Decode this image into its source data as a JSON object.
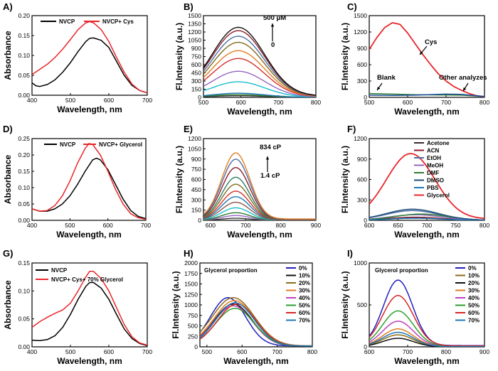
{
  "chart_data": [
    {
      "id": "A",
      "panel_label": "A)",
      "type": "line",
      "xlabel": "Wavelength, nm",
      "ylabel": "Absorbance",
      "xlim": [
        400,
        700
      ],
      "ylim": [
        0,
        0.2
      ],
      "xticks": [
        400,
        500,
        600,
        700
      ],
      "yticks": [
        0.0,
        0.05,
        0.1,
        0.15,
        0.2
      ],
      "yticklabels": [
        "0.00",
        "0.05",
        "0.10",
        "0.15",
        "0.20"
      ],
      "legend": "top-left",
      "series": [
        {
          "name": "NVCP",
          "color": "#000000",
          "x": [
            400,
            410,
            420,
            440,
            460,
            480,
            500,
            520,
            540,
            550,
            560,
            580,
            600,
            620,
            640,
            660,
            680,
            700
          ],
          "y": [
            0.031,
            0.024,
            0.022,
            0.027,
            0.039,
            0.058,
            0.082,
            0.11,
            0.135,
            0.143,
            0.144,
            0.138,
            0.12,
            0.085,
            0.05,
            0.025,
            0.012,
            0.006
          ]
        },
        {
          "name": "NVCP+ Cys",
          "color": "#e8262a",
          "x": [
            400,
            420,
            440,
            460,
            480,
            500,
            520,
            540,
            550,
            560,
            580,
            600,
            620,
            640,
            660,
            680,
            700
          ],
          "y": [
            0.052,
            0.065,
            0.078,
            0.095,
            0.116,
            0.14,
            0.165,
            0.182,
            0.185,
            0.182,
            0.165,
            0.135,
            0.095,
            0.058,
            0.028,
            0.012,
            0.006
          ]
        }
      ]
    },
    {
      "id": "B",
      "panel_label": "B)",
      "type": "line",
      "xlabel": "Wavelength, nm",
      "ylabel": "Fl.Intensity (a.u.)",
      "xlim": [
        500,
        800
      ],
      "ylim": [
        0,
        1500
      ],
      "xticks": [
        500,
        600,
        700,
        800
      ],
      "yticks": [
        0,
        150,
        300,
        450,
        600,
        750,
        900,
        1050,
        1200,
        1350,
        1500
      ],
      "yticklabels": [
        "0",
        "150",
        "300",
        "450",
        "600",
        "750",
        "900",
        "1050",
        "1200",
        "1350",
        "1500"
      ],
      "annotations": [
        "500 μM",
        "0"
      ],
      "peak_x": 593,
      "width": 70,
      "peaks": [
        30,
        50,
        75,
        280,
        470,
        700,
        840,
        990,
        1100,
        1200,
        1260
      ],
      "colors": [
        "#3a3a3a",
        "#2e7d32",
        "#1f77b4",
        "#17becf",
        "#9467bd",
        "#d0312d",
        "#e37d24",
        "#7f6a1a",
        "#4c6fa5",
        "#8c1d2a",
        "#111111"
      ]
    },
    {
      "id": "C",
      "panel_label": "C)",
      "type": "line",
      "xlabel": "Wavelength, nm",
      "ylabel": "Fl.Intensity (a.u.)",
      "xlim": [
        500,
        800
      ],
      "ylim": [
        0,
        1500
      ],
      "xticks": [
        500,
        600,
        700,
        800
      ],
      "yticks": [
        0,
        300,
        600,
        900,
        1200,
        1500
      ],
      "yticklabels": [
        "0",
        "300",
        "600",
        "900",
        "1200",
        "1500"
      ],
      "annotations": [
        "Cys",
        "Blank",
        "Other analyzes"
      ],
      "series": [
        {
          "name": "Cys",
          "color": "#e8262a",
          "x": [
            500,
            520,
            540,
            560,
            580,
            600,
            620,
            640,
            660,
            680,
            700,
            720,
            740,
            760,
            780,
            800
          ],
          "y": [
            880,
            1100,
            1280,
            1370,
            1340,
            1180,
            980,
            780,
            600,
            430,
            300,
            200,
            130,
            70,
            30,
            10
          ]
        },
        {
          "name": "Blank",
          "color": "#2e7d32",
          "x": [
            500,
            560,
            620,
            680,
            700,
            740,
            780,
            800
          ],
          "y": [
            70,
            60,
            50,
            45,
            45,
            40,
            25,
            15
          ]
        },
        {
          "name": "Other analyzes",
          "color": "#1f4e9e",
          "x": [
            500,
            560,
            620,
            680,
            700,
            740,
            780,
            800
          ],
          "y": [
            40,
            35,
            40,
            55,
            60,
            55,
            30,
            15
          ]
        }
      ]
    },
    {
      "id": "D",
      "panel_label": "D)",
      "type": "line",
      "xlabel": "Wavelength, nm",
      "ylabel": "Absorbance",
      "xlim": [
        400,
        700
      ],
      "ylim": [
        0,
        0.25
      ],
      "xticks": [
        400,
        500,
        600,
        700
      ],
      "yticks": [
        0.0,
        0.05,
        0.1,
        0.15,
        0.2,
        0.25
      ],
      "yticklabels": [
        "0.00",
        "0.05",
        "0.10",
        "0.15",
        "0.20",
        "0.25"
      ],
      "legend": "top",
      "series": [
        {
          "name": "NVCP",
          "color": "#000000",
          "x": [
            400,
            420,
            440,
            460,
            480,
            500,
            520,
            540,
            560,
            570,
            580,
            600,
            620,
            640,
            660,
            680,
            700
          ],
          "y": [
            0.035,
            0.028,
            0.028,
            0.035,
            0.05,
            0.075,
            0.11,
            0.15,
            0.185,
            0.19,
            0.185,
            0.155,
            0.11,
            0.065,
            0.03,
            0.012,
            0.005
          ]
        },
        {
          "name": "NVCP+ Glycerol",
          "color": "#e8262a",
          "x": [
            400,
            420,
            440,
            460,
            480,
            500,
            520,
            540,
            550,
            560,
            580,
            600,
            620,
            640,
            660,
            680,
            700
          ],
          "y": [
            0.035,
            0.028,
            0.03,
            0.045,
            0.075,
            0.12,
            0.175,
            0.22,
            0.235,
            0.232,
            0.2,
            0.15,
            0.095,
            0.05,
            0.02,
            0.008,
            0.003
          ]
        }
      ]
    },
    {
      "id": "E",
      "panel_label": "E)",
      "type": "line",
      "xlabel": "Wavelength, nm",
      "ylabel": "Fl.Intensity (a.u.)",
      "xlim": [
        580,
        900
      ],
      "ylim": [
        0,
        1200
      ],
      "xticks": [
        600,
        700,
        800,
        900
      ],
      "yticks": [
        0,
        150,
        300,
        450,
        600,
        750,
        900,
        1050,
        1200
      ],
      "yticklabels": [
        "0",
        "150",
        "300",
        "450",
        "600",
        "750",
        "900",
        "1050",
        "1200"
      ],
      "annotations": [
        "834 cP",
        "1.4 cP"
      ],
      "peak_x": 672,
      "width": 40,
      "peaks": [
        30,
        70,
        110,
        180,
        260,
        340,
        420,
        520,
        620,
        760,
        880,
        970
      ],
      "colors": [
        "#3a3a3a",
        "#9467bd",
        "#2e7d32",
        "#17becf",
        "#8c564b",
        "#1f77b4",
        "#d0312d",
        "#7f6a1a",
        "#2a7f62",
        "#8c1d2a",
        "#4c6fa5",
        "#e37d24"
      ]
    },
    {
      "id": "F",
      "panel_label": "F)",
      "type": "line",
      "xlabel": "Wavelength, nm",
      "ylabel": "Fl.Intensity (a.u.)",
      "xlim": [
        600,
        800
      ],
      "ylim": [
        0,
        1200
      ],
      "xticks": [
        600,
        650,
        700,
        750,
        800
      ],
      "yticks": [
        0,
        300,
        600,
        900,
        1200
      ],
      "yticklabels": [
        "0",
        "300",
        "600",
        "900",
        "1200"
      ],
      "legend": "top-right",
      "series": [
        {
          "name": "Acetone",
          "color": "#3a2a2a",
          "peak_x": 680,
          "peak": 40,
          "width": 45
        },
        {
          "name": "ACN",
          "color": "#8c1d2a",
          "peak_x": 680,
          "peak": 45,
          "width": 45
        },
        {
          "name": "EtOH",
          "color": "#4c6fa5",
          "peak_x": 675,
          "peak": 140,
          "width": 45
        },
        {
          "name": "MeOH",
          "color": "#9467bd",
          "peak_x": 680,
          "peak": 80,
          "width": 45
        },
        {
          "name": "DMF",
          "color": "#2e7d32",
          "peak_x": 690,
          "peak": 90,
          "width": 45
        },
        {
          "name": "DMSO",
          "color": "#1f4e79",
          "peak_x": 675,
          "peak": 160,
          "width": 45
        },
        {
          "name": "PBS",
          "color": "#1f77b4",
          "peak_x": 680,
          "peak": 30,
          "width": 45
        },
        {
          "name": "Glycerol",
          "color": "#e8262a",
          "peak_x": 672,
          "peak": 960,
          "width": 42
        }
      ]
    },
    {
      "id": "G",
      "panel_label": "G)",
      "type": "line",
      "xlabel": "Wavelength, nm",
      "ylabel": "Absorbance",
      "xlim": [
        400,
        700
      ],
      "ylim": [
        0,
        0.15
      ],
      "xticks": [
        400,
        500,
        600,
        700
      ],
      "yticks": [
        0.0,
        0.05,
        0.1,
        0.15
      ],
      "yticklabels": [
        "0.00",
        "0.05",
        "0.10",
        "0.15"
      ],
      "legend": "top-left",
      "series": [
        {
          "name": "NVCP",
          "color": "#000000",
          "x": [
            400,
            420,
            440,
            460,
            480,
            500,
            520,
            540,
            550,
            560,
            580,
            600,
            620,
            640,
            660,
            680,
            700
          ],
          "y": [
            0.012,
            0.011,
            0.013,
            0.02,
            0.035,
            0.058,
            0.085,
            0.108,
            0.115,
            0.115,
            0.105,
            0.085,
            0.058,
            0.032,
            0.015,
            0.006,
            0.002
          ]
        },
        {
          "name": "NVCP+ Cys+ 70% Glycerol",
          "color": "#e8262a",
          "x": [
            400,
            420,
            440,
            460,
            480,
            500,
            520,
            540,
            550,
            560,
            580,
            600,
            620,
            640,
            660,
            680,
            700
          ],
          "y": [
            0.035,
            0.045,
            0.053,
            0.06,
            0.066,
            0.078,
            0.1,
            0.125,
            0.135,
            0.135,
            0.122,
            0.1,
            0.07,
            0.04,
            0.018,
            0.007,
            0.003
          ]
        }
      ]
    },
    {
      "id": "H",
      "panel_label": "H)",
      "type": "line",
      "title": "Glycerol proportion",
      "xlabel": "Wavelength, nm",
      "ylabel": "Fl.Intensity (a.u.)",
      "xlim": [
        480,
        800
      ],
      "ylim": [
        0,
        2000
      ],
      "xticks": [
        500,
        600,
        700,
        800
      ],
      "yticks": [
        0,
        250,
        500,
        750,
        1000,
        1250,
        1500,
        1750,
        2000
      ],
      "yticklabels": [
        "0",
        "250",
        "500",
        "750",
        "1000",
        "1250",
        "1500",
        "1750",
        "2000"
      ],
      "legend": "top-right",
      "series": [
        {
          "name": "0%",
          "color": "#1f1fbf",
          "peak_x": 560,
          "peak": 1150,
          "width": 50
        },
        {
          "name": "10%",
          "color": "#111111",
          "peak_x": 575,
          "peak": 1000,
          "width": 55
        },
        {
          "name": "20%",
          "color": "#8c6d1a",
          "peak_x": 575,
          "peak": 1150,
          "width": 60
        },
        {
          "name": "30%",
          "color": "#e37d24",
          "peak_x": 578,
          "peak": 1080,
          "width": 58
        },
        {
          "name": "40%",
          "color": "#c040c0",
          "peak_x": 575,
          "peak": 960,
          "width": 55
        },
        {
          "name": "50%",
          "color": "#2ca02c",
          "peak_x": 580,
          "peak": 900,
          "width": 55
        },
        {
          "name": "60%",
          "color": "#d62728",
          "peak_x": 585,
          "peak": 1000,
          "width": 55
        },
        {
          "name": "70%",
          "color": "#1f77b4",
          "peak_x": 580,
          "peak": 1030,
          "width": 55
        }
      ]
    },
    {
      "id": "I",
      "panel_label": "I)",
      "type": "line",
      "title": "Glycerol proportion",
      "xlabel": "Wavelength, nm",
      "ylabel": "Fl.Intensity (a.u.)",
      "xlim": [
        600,
        900
      ],
      "ylim": [
        0,
        1000
      ],
      "xticks": [
        600,
        700,
        800,
        900
      ],
      "yticks": [
        0,
        500,
        1000
      ],
      "yticklabels": [
        "0",
        "500",
        "1000"
      ],
      "legend": "top-right",
      "series": [
        {
          "name": "0%",
          "color": "#1f1fbf",
          "peak_x": 675,
          "peak": 780,
          "width": 38
        },
        {
          "name": "10%",
          "color": "#8c6d1a",
          "peak_x": 675,
          "peak": 140,
          "width": 40
        },
        {
          "name": "20%",
          "color": "#111111",
          "peak_x": 675,
          "peak": 100,
          "width": 40
        },
        {
          "name": "30%",
          "color": "#e37d24",
          "peak_x": 675,
          "peak": 210,
          "width": 40
        },
        {
          "name": "40%",
          "color": "#c040c0",
          "peak_x": 675,
          "peak": 300,
          "width": 40
        },
        {
          "name": "50%",
          "color": "#2ca02c",
          "peak_x": 675,
          "peak": 420,
          "width": 40
        },
        {
          "name": "60%",
          "color": "#d62728",
          "peak_x": 675,
          "peak": 600,
          "width": 40
        },
        {
          "name": "70%",
          "color": "#1f77b4",
          "peak_x": 675,
          "peak": 170,
          "width": 40
        }
      ]
    }
  ]
}
